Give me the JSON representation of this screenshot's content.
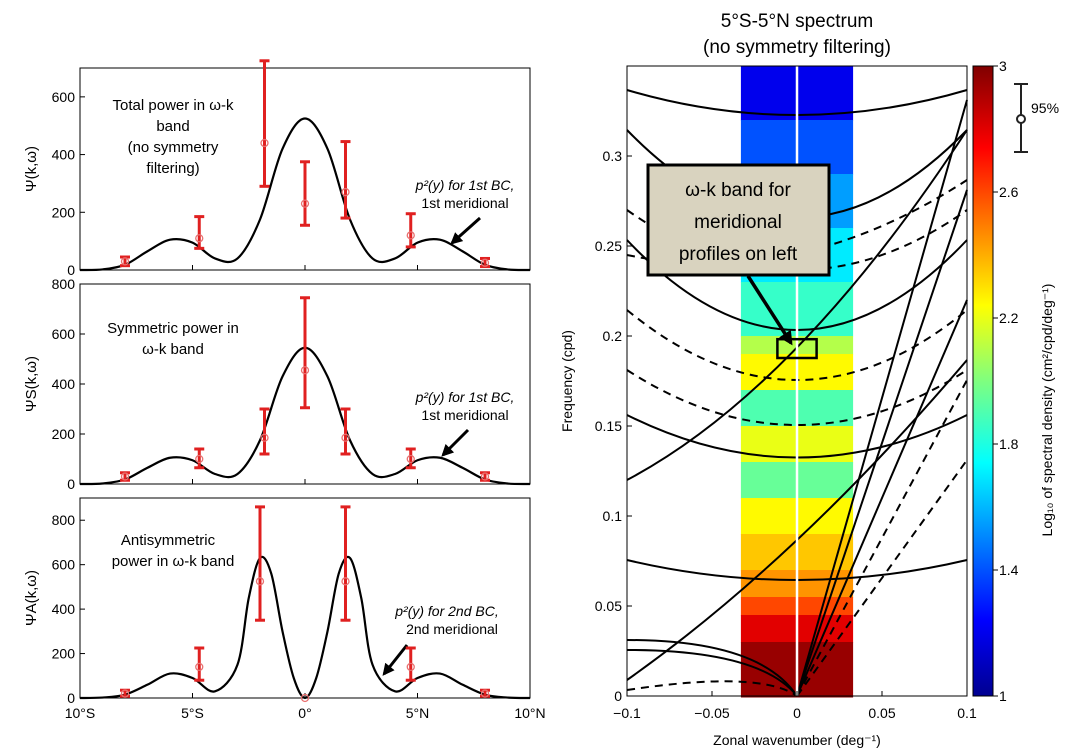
{
  "left_panels": {
    "x_ticks": [
      "10°S",
      "5°S",
      "0°",
      "5°N",
      "10°N"
    ],
    "panels": [
      {
        "ylabel": "Ψ(k,ω)",
        "yticks": [
          "0",
          "200",
          "400",
          "600"
        ],
        "label_lines": [
          "Total power in ω-k",
          "band",
          "(no symmetry",
          "filtering)"
        ],
        "anno_line1": "p²(y) for 1st BC,",
        "anno_line2": "1st meridional"
      },
      {
        "ylabel": "ΨS(k,ω)",
        "yticks": [
          "0",
          "200",
          "400",
          "600",
          "800"
        ],
        "label_lines": [
          "Symmetric power in",
          "ω-k band"
        ],
        "anno_line1": "p²(y) for 1st BC,",
        "anno_line2": "1st meridional"
      },
      {
        "ylabel": "ΨA(k,ω)",
        "yticks": [
          "0",
          "200",
          "400",
          "600",
          "800"
        ],
        "label_lines": [
          "Antisymmetric",
          "power in ω-k band"
        ],
        "anno_line1": "p²(y) for 2nd BC,",
        "anno_line2": "2nd meridional"
      }
    ]
  },
  "spectrum": {
    "title_line1": "5°S-5°N spectrum",
    "title_line2": "(no symmetry filtering)",
    "xlabel": "Zonal wavenumber (deg⁻¹)",
    "ylabel": "Frequency (cpd)",
    "x_ticks": [
      "−0.1",
      "−0.05",
      "0",
      "0.05",
      "0.1"
    ],
    "y_ticks": [
      "0",
      "0.05",
      "0.1",
      "0.15",
      "0.2",
      "0.25",
      "0.3"
    ],
    "callout_lines": [
      "ω-k band for",
      "meridional",
      "profiles on left"
    ],
    "colorbar_label": "Log₁₀ of spectral density (cm²/cpd/deg⁻¹)",
    "colorbar_ticks": [
      "1",
      "1.4",
      "1.8",
      "2.2",
      "2.6",
      "3"
    ],
    "confidence_label": "95%"
  },
  "chart_data": [
    {
      "type": "line",
      "xlabel": "",
      "ylabel": "Ψ(k,ω)",
      "x_unit": "degrees latitude (negative = S)",
      "xlim": [
        -10,
        10
      ],
      "ylim": [
        0,
        700
      ],
      "curve": {
        "x": [
          -10,
          -9,
          -8,
          -7,
          -6,
          -5,
          -4,
          -3,
          -2,
          -1,
          0,
          1,
          2,
          3,
          4,
          5,
          6,
          7,
          8,
          9,
          10
        ],
        "y": [
          0,
          2,
          18,
          65,
          105,
          95,
          40,
          40,
          175,
          420,
          525,
          420,
          175,
          40,
          40,
          95,
          105,
          65,
          18,
          2,
          0
        ]
      },
      "points": [
        {
          "x": -8.0,
          "y": 30,
          "lo": 15,
          "hi": 45
        },
        {
          "x": -4.7,
          "y": 110,
          "lo": 75,
          "hi": 185
        },
        {
          "x": -1.8,
          "y": 440,
          "lo": 290,
          "hi": 725
        },
        {
          "x": 0.0,
          "y": 230,
          "lo": 155,
          "hi": 375
        },
        {
          "x": 1.8,
          "y": 270,
          "lo": 180,
          "hi": 445
        },
        {
          "x": 4.7,
          "y": 120,
          "lo": 80,
          "hi": 195
        },
        {
          "x": 8.0,
          "y": 25,
          "lo": 12,
          "hi": 40
        }
      ]
    },
    {
      "type": "line",
      "xlabel": "",
      "ylabel": "ΨS(k,ω)",
      "x_unit": "degrees latitude (negative = S)",
      "xlim": [
        -10,
        10
      ],
      "ylim": [
        0,
        800
      ],
      "curve": {
        "x": [
          -10,
          -9,
          -8,
          -7,
          -6,
          -5,
          -4,
          -3,
          -2,
          -1,
          0,
          1,
          2,
          3,
          4,
          5,
          6,
          7,
          8,
          9,
          10
        ],
        "y": [
          0,
          2,
          18,
          65,
          105,
          95,
          40,
          40,
          175,
          430,
          545,
          430,
          175,
          40,
          40,
          95,
          105,
          65,
          18,
          2,
          0
        ]
      },
      "points": [
        {
          "x": -8.0,
          "y": 30,
          "lo": 15,
          "hi": 45
        },
        {
          "x": -4.7,
          "y": 100,
          "lo": 65,
          "hi": 140
        },
        {
          "x": -1.8,
          "y": 185,
          "lo": 120,
          "hi": 300
        },
        {
          "x": 0.0,
          "y": 455,
          "lo": 305,
          "hi": 745
        },
        {
          "x": 1.8,
          "y": 185,
          "lo": 120,
          "hi": 300
        },
        {
          "x": 4.7,
          "y": 100,
          "lo": 65,
          "hi": 140
        },
        {
          "x": 8.0,
          "y": 30,
          "lo": 15,
          "hi": 45
        }
      ]
    },
    {
      "type": "line",
      "xlabel": "",
      "ylabel": "ΨA(k,ω)",
      "x_unit": "degrees latitude (negative = S)",
      "xlim": [
        -10,
        10
      ],
      "ylim": [
        0,
        900
      ],
      "curve": {
        "x": [
          -10,
          -9,
          -8,
          -7,
          -6,
          -5,
          -4,
          -3,
          -2.5,
          -2,
          -1.5,
          -1,
          -0.5,
          0,
          0.5,
          1,
          1.5,
          2,
          2.5,
          3,
          4,
          5,
          6,
          7,
          8,
          9,
          10
        ],
        "y": [
          0,
          2,
          15,
          60,
          110,
          90,
          30,
          150,
          450,
          630,
          560,
          300,
          90,
          0,
          90,
          300,
          560,
          630,
          450,
          150,
          30,
          90,
          110,
          60,
          15,
          2,
          0
        ]
      },
      "points": [
        {
          "x": -8.0,
          "y": 20,
          "lo": 8,
          "hi": 35
        },
        {
          "x": -4.7,
          "y": 140,
          "lo": 80,
          "hi": 225
        },
        {
          "x": -2.0,
          "y": 525,
          "lo": 350,
          "hi": 860
        },
        {
          "x": 0.0,
          "y": 0,
          "lo": 0,
          "hi": 0
        },
        {
          "x": 1.8,
          "y": 525,
          "lo": 350,
          "hi": 860
        },
        {
          "x": 4.7,
          "y": 140,
          "lo": 80,
          "hi": 225
        },
        {
          "x": 8.0,
          "y": 20,
          "lo": 8,
          "hi": 35
        }
      ]
    },
    {
      "type": "heatmap",
      "title": "5°S-5°N spectrum (no symmetry filtering)",
      "xlabel": "Zonal wavenumber (deg⁻¹)",
      "ylabel": "Frequency (cpd)",
      "xlim": [
        -0.1,
        0.1
      ],
      "ylim": [
        0,
        0.35
      ],
      "data_x_range": [
        -0.033,
        0.033
      ],
      "colorbar_range": [
        1,
        3
      ],
      "rows": [
        {
          "freq": 0.35,
          "value": 1.2
        },
        {
          "freq": 0.32,
          "value": 1.4
        },
        {
          "freq": 0.29,
          "value": 1.55
        },
        {
          "freq": 0.26,
          "value": 1.7
        },
        {
          "freq": 0.23,
          "value": 1.85
        },
        {
          "freq": 0.2,
          "value": 2.1
        },
        {
          "freq": 0.19,
          "value": 2.25
        },
        {
          "freq": 0.17,
          "value": 1.9
        },
        {
          "freq": 0.15,
          "value": 2.2
        },
        {
          "freq": 0.13,
          "value": 1.95
        },
        {
          "freq": 0.11,
          "value": 2.25
        },
        {
          "freq": 0.09,
          "value": 2.35
        },
        {
          "freq": 0.07,
          "value": 2.45
        },
        {
          "freq": 0.055,
          "value": 2.6
        },
        {
          "freq": 0.045,
          "value": 2.8
        },
        {
          "freq": 0.03,
          "value": 2.95
        },
        {
          "freq": 0.0,
          "value": 3.0
        }
      ],
      "highlight_box": {
        "k": [
          -0.008,
          0.008
        ],
        "freq": [
          0.19,
          0.196
        ]
      }
    }
  ]
}
